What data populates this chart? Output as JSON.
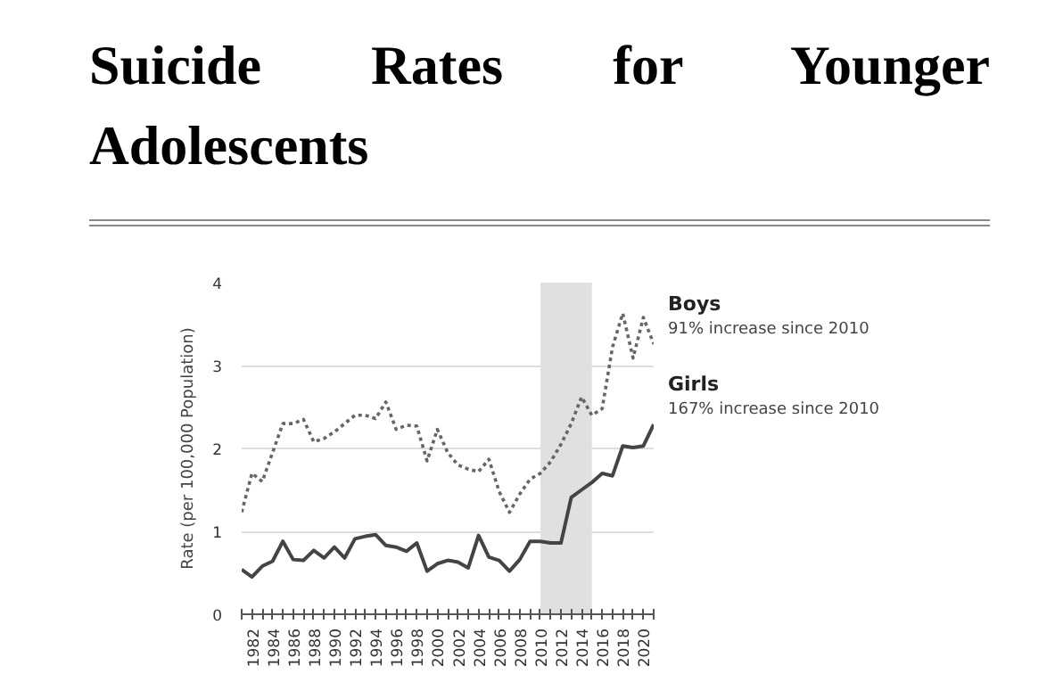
{
  "chart_data": {
    "type": "line",
    "title": "Suicide Rates for Younger Adolescents",
    "ylabel": "Rate (per 100,000 Population)",
    "x": [
      1981,
      1982,
      1983,
      1984,
      1985,
      1986,
      1987,
      1988,
      1989,
      1990,
      1991,
      1992,
      1993,
      1994,
      1995,
      1996,
      1997,
      1998,
      1999,
      2000,
      2001,
      2002,
      2003,
      2004,
      2005,
      2006,
      2007,
      2008,
      2009,
      2010,
      2011,
      2012,
      2013,
      2014,
      2015,
      2016,
      2017,
      2018,
      2019,
      2020,
      2021
    ],
    "series": [
      {
        "name": "Boys",
        "color": "#666666",
        "line_style": "dotted",
        "values": [
          1.23,
          1.7,
          1.6,
          1.95,
          2.3,
          2.3,
          2.35,
          2.08,
          2.12,
          2.2,
          2.3,
          2.4,
          2.4,
          2.36,
          2.56,
          2.23,
          2.28,
          2.27,
          1.85,
          2.23,
          1.95,
          1.8,
          1.75,
          1.72,
          1.87,
          1.48,
          1.23,
          1.45,
          1.63,
          1.7,
          1.84,
          2.05,
          2.3,
          2.62,
          2.4,
          2.48,
          3.22,
          3.63,
          3.09,
          3.58,
          3.26
        ]
      },
      {
        "name": "Girls",
        "color": "#444444",
        "line_style": "solid",
        "values": [
          0.54,
          0.45,
          0.58,
          0.64,
          0.88,
          0.66,
          0.65,
          0.77,
          0.68,
          0.81,
          0.68,
          0.91,
          0.94,
          0.96,
          0.83,
          0.81,
          0.76,
          0.86,
          0.52,
          0.61,
          0.65,
          0.63,
          0.56,
          0.95,
          0.69,
          0.65,
          0.52,
          0.66,
          0.88,
          0.88,
          0.86,
          0.86,
          1.41,
          1.5,
          1.59,
          1.7,
          1.67,
          2.03,
          2.01,
          2.03,
          2.29
        ]
      }
    ],
    "annotations": [
      "91% increase since 2010",
      "167% increase since 2010"
    ],
    "bands": [
      {
        "axis": "x",
        "from": 2010,
        "to": 2015,
        "color": "#e0e0e0"
      }
    ],
    "xlim": [
      1981,
      2021
    ],
    "ylim": [
      0,
      4
    ],
    "yticks": [
      0,
      1,
      2,
      3,
      4
    ],
    "xticks": [
      {
        "value": 1981,
        "label": null
      },
      1982,
      {
        "value": 1983,
        "label": null
      },
      1984,
      {
        "value": 1985,
        "label": null
      },
      1986,
      {
        "value": 1987,
        "label": null
      },
      1988,
      {
        "value": 1989,
        "label": null
      },
      1990,
      {
        "value": 1991,
        "label": null
      },
      1992,
      {
        "value": 1993,
        "label": null
      },
      1994,
      {
        "value": 1995,
        "label": null
      },
      1996,
      {
        "value": 1997,
        "label": null
      },
      1998,
      {
        "value": 1999,
        "label": null
      },
      2000,
      {
        "value": 2001,
        "label": null
      },
      2002,
      {
        "value": 2003,
        "label": null
      },
      2004,
      {
        "value": 2005,
        "label": null
      },
      2006,
      {
        "value": 2007,
        "label": null
      },
      2008,
      {
        "value": 2009,
        "label": null
      },
      2010,
      {
        "value": 2011,
        "label": null
      },
      2012,
      {
        "value": 2013,
        "label": null
      },
      2014,
      {
        "value": 2015,
        "label": null
      },
      2016,
      {
        "value": 2017,
        "label": null
      },
      2018,
      {
        "value": 2019,
        "label": null
      },
      2020,
      {
        "value": 2021,
        "label": null
      }
    ],
    "grid": "y"
  }
}
